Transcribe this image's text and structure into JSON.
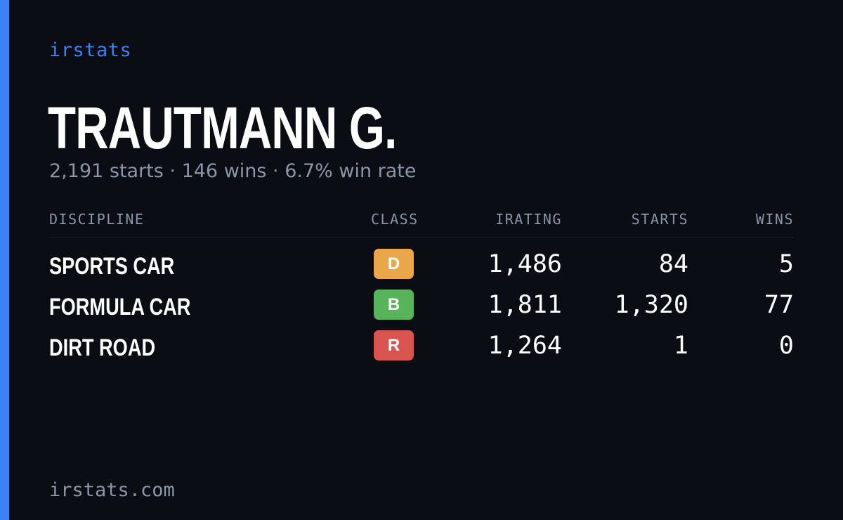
{
  "brand": "irstats",
  "driver": {
    "name": "TRAUTMANN G.",
    "summary": "2,191 starts · 146 wins · 6.7% win rate"
  },
  "table": {
    "headers": {
      "discipline": "DISCIPLINE",
      "class": "CLASS",
      "irating": "IRATING",
      "starts": "STARTS",
      "wins": "WINS"
    },
    "rows": [
      {
        "discipline": "SPORTS CAR",
        "class": "D",
        "class_color": "#e9a749",
        "irating": "1,486",
        "starts": "84",
        "wins": "5"
      },
      {
        "discipline": "FORMULA CAR",
        "class": "B",
        "class_color": "#58b45a",
        "irating": "1,811",
        "starts": "1,320",
        "wins": "77"
      },
      {
        "discipline": "DIRT ROAD",
        "class": "R",
        "class_color": "#d9534f",
        "irating": "1,264",
        "starts": "1",
        "wins": "0"
      }
    ]
  },
  "footer": "irstats.com",
  "colors": {
    "accent": "#3b82f6",
    "background": "#0a0d14",
    "muted": "#8b95a7"
  }
}
